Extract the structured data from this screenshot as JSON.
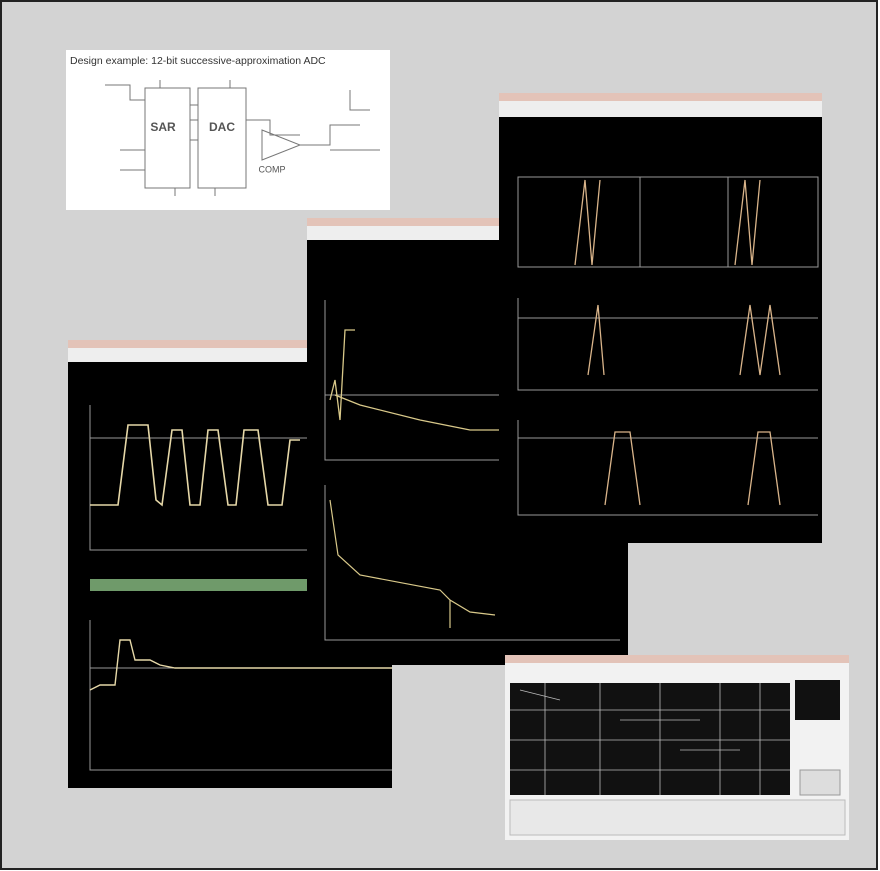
{
  "schematic": {
    "title": "Design example: 12-bit successive-approximation ADC",
    "blocks": [
      "SAR",
      "DAC",
      "COMP"
    ]
  }
}
